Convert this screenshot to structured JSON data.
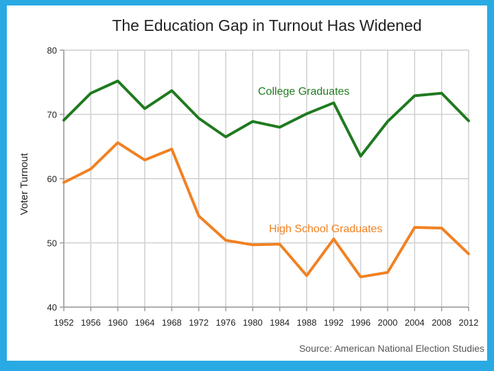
{
  "chart_data": {
    "type": "line",
    "title": "The Education Gap in Turnout Has Widened",
    "xlabel": "",
    "ylabel": "Voter Turnout",
    "x": [
      "1952",
      "1956",
      "1960",
      "1964",
      "1968",
      "1972",
      "1976",
      "1980",
      "1984",
      "1988",
      "1992",
      "1996",
      "2000",
      "2004",
      "2008",
      "2012"
    ],
    "yticks": [
      40,
      50,
      60,
      70,
      80
    ],
    "ylim": [
      40,
      80
    ],
    "grid": true,
    "series": [
      {
        "name": "College Graduates",
        "color": "#1f7a1f",
        "values": [
          69.1,
          73.3,
          75.2,
          70.9,
          73.7,
          69.4,
          66.5,
          68.9,
          68.0,
          70.1,
          71.8,
          63.5,
          68.9,
          72.9,
          73.3,
          69.0
        ]
      },
      {
        "name": "High School Graduates",
        "color": "#f08122",
        "values": [
          59.4,
          61.5,
          65.6,
          62.9,
          64.6,
          54.2,
          50.4,
          49.7,
          49.8,
          44.9,
          50.6,
          44.7,
          45.4,
          52.4,
          52.3,
          48.3
        ]
      }
    ],
    "source": "Source: American National Election Studies"
  }
}
